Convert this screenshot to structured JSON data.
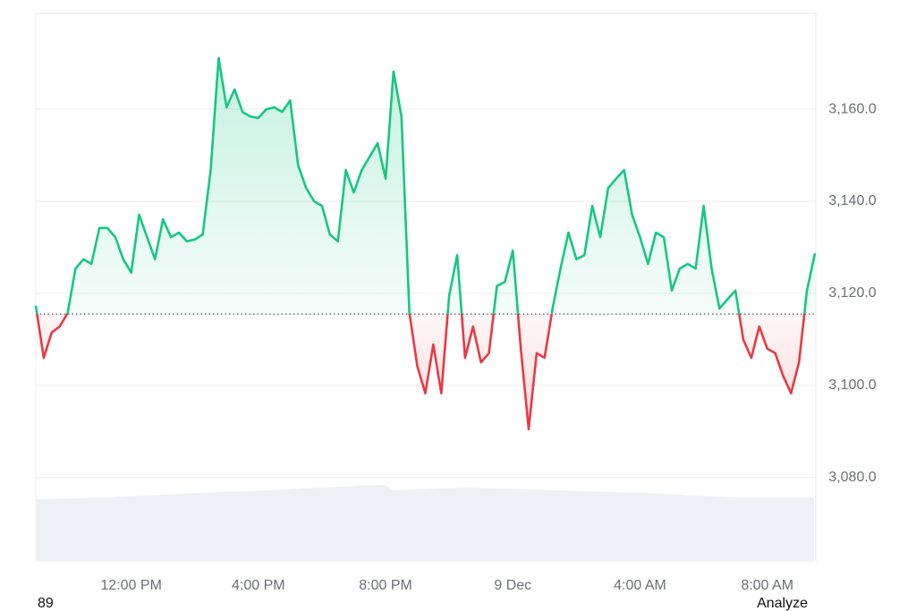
{
  "chart_data": {
    "type": "line",
    "categories": [
      null,
      null,
      null,
      null,
      null,
      null,
      null,
      null,
      null,
      null,
      null,
      null,
      "12:00 PM",
      null,
      null,
      null,
      null,
      null,
      null,
      null,
      null,
      null,
      null,
      null,
      null,
      null,
      null,
      null,
      "4:00 PM",
      null,
      null,
      null,
      null,
      null,
      null,
      null,
      null,
      null,
      null,
      null,
      null,
      null,
      null,
      null,
      "8:00 PM",
      null,
      null,
      null,
      null,
      null,
      null,
      null,
      null,
      null,
      null,
      null,
      null,
      null,
      null,
      null,
      "9 Dec",
      null,
      null,
      null,
      null,
      null,
      null,
      null,
      null,
      null,
      null,
      null,
      null,
      null,
      null,
      null,
      "4:00 AM",
      null,
      null,
      null,
      null,
      null,
      null,
      null,
      null,
      null,
      null,
      null,
      null,
      null,
      null,
      null,
      "8:00 AM",
      null,
      null,
      null,
      null,
      null,
      null
    ],
    "values": [
      3117.3,
      3106,
      3111.5,
      3112.8,
      3115.7,
      3125.4,
      3127.4,
      3126.4,
      3134.2,
      3134.2,
      3132.2,
      3127.4,
      3124.5,
      3137.1,
      3132.2,
      3127.4,
      3136.1,
      3132.2,
      3133.2,
      3131.3,
      3131.7,
      3132.8,
      3146.8,
      3171.1,
      3160.4,
      3164.3,
      3159.4,
      3158.4,
      3158.1,
      3160,
      3160.4,
      3159.4,
      3161.9,
      3147.8,
      3142.9,
      3140,
      3139,
      3132.8,
      3131.3,
      3146.8,
      3141.9,
      3146.8,
      3149.7,
      3152.6,
      3144.9,
      3168.2,
      3158.4,
      3115.7,
      3104.1,
      3098.3,
      3108.9,
      3098.3,
      3119.6,
      3128.3,
      3106,
      3112.8,
      3105,
      3107,
      3121.6,
      3122.5,
      3129.3,
      3108,
      3090.5,
      3107,
      3106,
      3116.7,
      3125.4,
      3133.2,
      3127.4,
      3128.3,
      3139,
      3132.2,
      3142.9,
      3144.9,
      3146.8,
      3137.1,
      3132.2,
      3126.4,
      3133.2,
      3132.2,
      3120.6,
      3125.4,
      3126.4,
      3125.4,
      3139,
      3125.4,
      3116.7,
      3118.7,
      3120.6,
      3109.9,
      3106,
      3112.8,
      3108,
      3107,
      3102.1,
      3098.3,
      3105,
      3120.6,
      3128.7
    ],
    "baseline": 3115.5,
    "up_color": "#16c784",
    "down_color": "#ea3943",
    "ylim": [
      3061.7,
      3180.8
    ],
    "yticks": [
      {
        "value": 3080,
        "label": "3,080.0"
      },
      {
        "value": 3100,
        "label": "3,100.0"
      },
      {
        "value": 3120,
        "label": "3,120.0"
      },
      {
        "value": 3140,
        "label": "3,140.0"
      },
      {
        "value": 3160,
        "label": "3,160.0"
      }
    ],
    "grid": true
  },
  "footer": {
    "left": "89",
    "right": "Analyze"
  }
}
